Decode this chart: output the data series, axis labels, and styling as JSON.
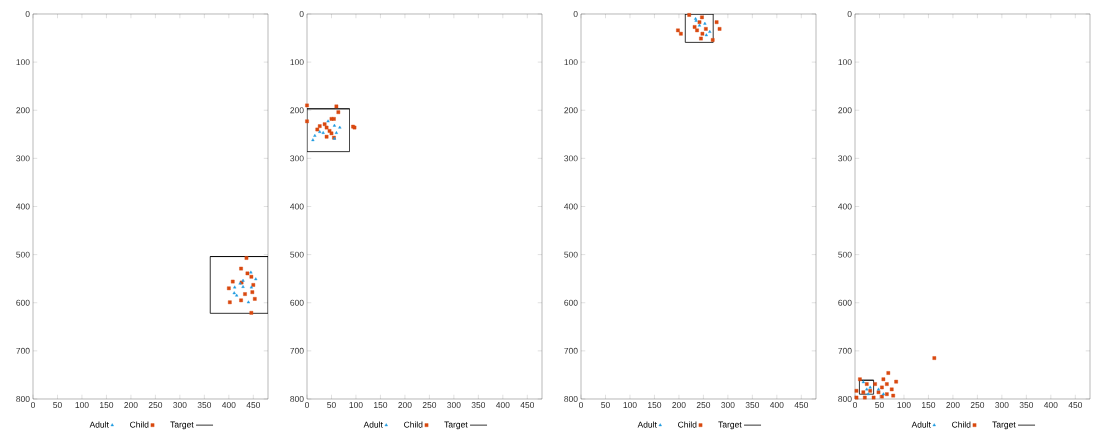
{
  "chart_data": [
    {
      "type": "scatter",
      "xlim": [
        0,
        480
      ],
      "ylim": [
        800,
        0
      ],
      "xticks": [
        0,
        50,
        100,
        150,
        200,
        250,
        300,
        350,
        400,
        450
      ],
      "yticks": [
        0,
        100,
        200,
        300,
        400,
        500,
        600,
        700,
        800
      ],
      "legend": "bottom",
      "grid": false,
      "series": [
        {
          "name": "Adult",
          "type": "scatter",
          "marker": "triangle",
          "color": "#1e9be0",
          "x": [
            445,
            455,
            429,
            412,
            446,
            429,
            411,
            416,
            440,
            423
          ],
          "values": [
            537,
            551,
            554,
            568,
            568,
            567,
            580,
            585,
            599,
            560
          ]
        },
        {
          "name": "Child",
          "type": "scatter",
          "marker": "square",
          "color": "#d9480f",
          "x": [
            436,
            425,
            438,
            446,
            408,
            426,
            400,
            450,
            448,
            433,
            453,
            425,
            402,
            446
          ],
          "values": [
            507,
            529,
            539,
            546,
            556,
            558,
            570,
            563,
            578,
            582,
            592,
            595,
            599,
            621
          ]
        },
        {
          "name": "Target",
          "type": "line",
          "marker": "none",
          "color": "#000000",
          "x": [
            362,
            480,
            480,
            362,
            362,
            480
          ],
          "values": [
            504,
            504,
            622,
            622,
            504,
            504
          ]
        }
      ]
    },
    {
      "type": "scatter",
      "xlim": [
        0,
        480
      ],
      "ylim": [
        800,
        0
      ],
      "xticks": [
        0,
        50,
        100,
        150,
        200,
        250,
        300,
        350,
        400,
        450
      ],
      "yticks": [
        0,
        100,
        200,
        300,
        400,
        500,
        600,
        700,
        800
      ],
      "legend": "bottom",
      "grid": false,
      "series": [
        {
          "name": "Adult",
          "type": "scatter",
          "marker": "triangle",
          "color": "#1e9be0",
          "x": [
            12,
            16,
            26,
            43,
            56,
            67,
            60,
            56,
            33
          ],
          "values": [
            262,
            253,
            245,
            223,
            232,
            236,
            247,
            259,
            247
          ]
        },
        {
          "name": "Child",
          "type": "scatter",
          "marker": "square",
          "color": "#d9480f",
          "x": [
            0,
            60,
            64,
            0,
            50,
            55,
            26,
            36,
            21,
            40,
            46,
            50,
            40,
            55,
            97,
            94
          ],
          "values": [
            190,
            192,
            204,
            223,
            218,
            218,
            233,
            229,
            240,
            236,
            243,
            248,
            255,
            257,
            236,
            234
          ]
        },
        {
          "name": "Target",
          "type": "line",
          "marker": "none",
          "color": "#000000",
          "x": [
            0,
            87,
            87,
            0,
            0,
            87
          ],
          "values": [
            197,
            197,
            286,
            286,
            197,
            197
          ]
        }
      ]
    },
    {
      "type": "scatter",
      "xlim": [
        0,
        480
      ],
      "ylim": [
        800,
        0
      ],
      "xticks": [
        0,
        50,
        100,
        150,
        200,
        250,
        300,
        350,
        400,
        450
      ],
      "yticks": [
        0,
        100,
        200,
        300,
        400,
        500,
        600,
        700,
        800
      ],
      "legend": "bottom",
      "grid": false,
      "series": [
        {
          "name": "Adult",
          "type": "scatter",
          "marker": "triangle",
          "color": "#1e9be0",
          "x": [
            234,
            253,
            242,
            263,
            256,
            235
          ],
          "values": [
            10,
            20,
            24,
            37,
            44,
            14
          ]
        },
        {
          "name": "Child",
          "type": "scatter",
          "marker": "square",
          "color": "#d9480f",
          "x": [
            221,
            247,
            242,
            232,
            255,
            237,
            248,
            245,
            269,
            198,
            204,
            277,
            283
          ],
          "values": [
            2,
            7,
            17,
            27,
            31,
            34,
            41,
            51,
            54,
            34,
            41,
            17,
            31
          ]
        },
        {
          "name": "Target",
          "type": "line",
          "marker": "none",
          "color": "#000000",
          "x": [
            213,
            270,
            270,
            213,
            213,
            270
          ],
          "values": [
            0,
            0,
            59,
            59,
            0,
            0
          ]
        }
      ]
    },
    {
      "type": "scatter",
      "xlim": [
        0,
        480
      ],
      "ylim": [
        800,
        0
      ],
      "xticks": [
        0,
        50,
        100,
        150,
        200,
        250,
        300,
        350,
        400,
        450
      ],
      "yticks": [
        0,
        100,
        200,
        300,
        400,
        500,
        600,
        700,
        800
      ],
      "legend": "bottom",
      "grid": false,
      "series": [
        {
          "name": "Adult",
          "type": "scatter",
          "marker": "triangle",
          "color": "#1e9be0",
          "x": [
            17,
            31,
            24,
            48,
            58,
            27
          ],
          "values": [
            765,
            776,
            780,
            780,
            790,
            790
          ]
        },
        {
          "name": "Child",
          "type": "scatter",
          "marker": "square",
          "color": "#d9480f",
          "x": [
            162,
            68,
            58,
            84,
            10,
            24,
            41,
            65,
            55,
            75,
            3,
            17,
            31,
            48,
            65,
            3,
            20,
            38,
            55,
            78
          ],
          "values": [
            715,
            746,
            759,
            764,
            759,
            769,
            769,
            769,
            776,
            780,
            783,
            786,
            783,
            786,
            790,
            797,
            797,
            797,
            795,
            793
          ]
        },
        {
          "name": "Target",
          "type": "line",
          "marker": "none",
          "color": "#000000",
          "x": [
            9,
            38,
            38,
            9,
            9,
            38
          ],
          "values": [
            761,
            761,
            790,
            790,
            761,
            761
          ]
        }
      ]
    }
  ]
}
